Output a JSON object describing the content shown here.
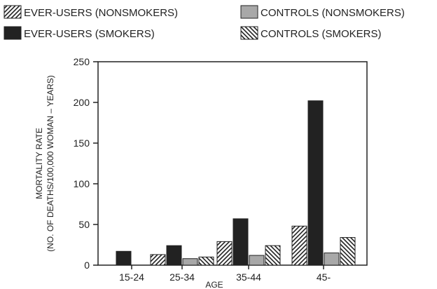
{
  "chart_data": {
    "type": "bar",
    "title": "",
    "xlabel": "AGE",
    "ylabel": [
      "MORTALITY RATE",
      "(NO. OF DEATHS/100,000 WOMAN – YEARS)"
    ],
    "ylim": [
      0,
      250
    ],
    "yticks": [
      0,
      50,
      100,
      150,
      200,
      250
    ],
    "categories": [
      "15-24",
      "25-34",
      "35-44",
      "45-"
    ],
    "legend_position": "top",
    "series": [
      {
        "name": "EVER-USERS (NONSMOKERS)",
        "pattern": "hatch-forward",
        "values": [
          0,
          13,
          29,
          48
        ]
      },
      {
        "name": "EVER-USERS (SMOKERS)",
        "pattern": "solid-dark",
        "color": "#222222",
        "values": [
          17,
          24,
          57,
          202
        ]
      },
      {
        "name": "CONTROLS (NONSMOKERS)",
        "pattern": "solid-gray",
        "color": "#a8a8a8",
        "values": [
          0,
          8,
          12,
          15
        ]
      },
      {
        "name": "CONTROLS (SMOKERS)",
        "pattern": "hatch-back",
        "values": [
          0,
          10,
          24,
          34
        ]
      }
    ]
  }
}
